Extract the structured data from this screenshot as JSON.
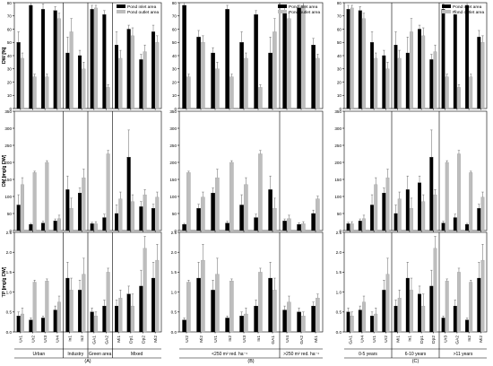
{
  "chart_data": {
    "type": "bar",
    "legend": {
      "position": "top-right",
      "inlet_label": "Pond inlet area",
      "outlet_label": "Pond outlet area",
      "inlet_color": "#000000",
      "outlet_color": "#bdbdbd"
    },
    "panels": [
      {
        "panel_label": "(A)",
        "categories": [
          "Ur1",
          "Ur2",
          "Ur3",
          "Ur4",
          "In1",
          "In2",
          "GA1",
          "GA2",
          "Mi1",
          "Dp1",
          "Dp2",
          "Mi2"
        ],
        "group_labels": [
          {
            "label": "Urban",
            "start": 0,
            "end": 3
          },
          {
            "label": "Industry",
            "start": 4,
            "end": 5
          },
          {
            "label": "Green area",
            "start": 6,
            "end": 7
          },
          {
            "label": "Mixed",
            "start": 8,
            "end": 11
          }
        ],
        "separators_after": [
          3,
          5,
          7
        ],
        "rows": {
          "dw": {
            "inlet": [
              50,
              78,
              75,
              74,
              42,
              40,
              75,
              71,
              48,
              60,
              37,
              58
            ],
            "inlet_err": [
              8,
              2,
              4,
              3,
              12,
              4,
              3,
              3,
              10,
              3,
              4,
              5
            ],
            "outlet": [
              38,
              24,
              24,
              68,
              58,
              30,
              76,
              16,
              38,
              55,
              43,
              50
            ],
            "outlet_err": [
              4,
              2,
              2,
              4,
              10,
              5,
              2,
              2,
              6,
              6,
              5,
              5
            ]
          },
          "om": {
            "inlet": [
              75,
              18,
              22,
              28,
              120,
              110,
              20,
              38,
              50,
              215,
              70,
              65
            ],
            "inlet_err": [
              30,
              3,
              5,
              6,
              40,
              15,
              4,
              10,
              25,
              80,
              15,
              12
            ],
            "outlet": [
              135,
              170,
              200,
              35,
              65,
              155,
              20,
              225,
              93,
              85,
              105,
              98
            ],
            "outlet_err": [
              20,
              4,
              5,
              10,
              30,
              25,
              6,
              10,
              20,
              20,
              15,
              15
            ]
          },
          "tp": {
            "inlet": [
              0.4,
              0.3,
              0.35,
              0.55,
              1.35,
              1.05,
              0.5,
              0.65,
              0.65,
              0.95,
              1.15,
              1.35
            ],
            "inlet_err": [
              0.1,
              0.05,
              0.05,
              0.1,
              0.4,
              0.25,
              0.1,
              0.15,
              0.15,
              0.2,
              0.4,
              0.4
            ],
            "outlet": [
              0.45,
              1.25,
              1.28,
              0.75,
              1.05,
              1.45,
              0.4,
              1.5,
              0.85,
              0.65,
              2.1,
              1.8
            ],
            "outlet_err": [
              0.15,
              0.05,
              0.05,
              0.15,
              0.3,
              0.4,
              0.1,
              0.1,
              0.2,
              0.3,
              0.3,
              0.4
            ]
          }
        }
      },
      {
        "panel_label": "(B)",
        "categories": [
          "Ur2",
          "Mi2",
          "Ur1",
          "In2",
          "Ur3",
          "In1",
          "GA1",
          "Ur4",
          "GA2",
          "Mi1"
        ],
        "group_labels": [
          {
            "label": "<250 m² red. ha⁻¹",
            "start": 0,
            "end": 6
          },
          {
            "label": ">250 m² red. ha⁻¹",
            "start": 7,
            "end": 9
          }
        ],
        "separators_after": [
          6
        ],
        "rows": {
          "dw": {
            "inlet": [
              78,
              54,
              42,
              75,
              50,
              71,
              42,
              74,
              76,
              48
            ],
            "inlet_err": [
              2,
              5,
              4,
              3,
              8,
              3,
              12,
              3,
              2,
              5
            ],
            "outlet": [
              24,
              50,
              30,
              24,
              38,
              16,
              58,
              68,
              78,
              38
            ],
            "outlet_err": [
              2,
              5,
              5,
              2,
              4,
              2,
              10,
              4,
              2,
              3
            ]
          },
          "om": {
            "inlet": [
              18,
              65,
              110,
              22,
              75,
              38,
              120,
              28,
              18,
              50
            ],
            "inlet_err": [
              3,
              12,
              15,
              5,
              30,
              10,
              40,
              6,
              5,
              10
            ],
            "outlet": [
              170,
              98,
              155,
              200,
              135,
              225,
              65,
              35,
              20,
              93
            ],
            "outlet_err": [
              4,
              15,
              25,
              5,
              20,
              10,
              30,
              10,
              6,
              8
            ]
          },
          "tp": {
            "inlet": [
              0.3,
              1.35,
              1.05,
              0.35,
              0.4,
              0.65,
              1.35,
              0.55,
              0.5,
              0.65
            ],
            "inlet_err": [
              0.05,
              0.4,
              0.25,
              0.05,
              0.1,
              0.15,
              0.4,
              0.1,
              0.1,
              0.1
            ],
            "outlet": [
              1.25,
              1.8,
              1.45,
              1.28,
              0.45,
              1.5,
              1.05,
              0.75,
              0.4,
              0.85
            ],
            "outlet_err": [
              0.05,
              0.4,
              0.4,
              0.05,
              0.15,
              0.1,
              0.3,
              0.15,
              0.1,
              0.1
            ]
          }
        }
      },
      {
        "panel_label": "(C)",
        "categories": [
          "GA1",
          "Ur4",
          "Ur1",
          "Ur2",
          "Mi1",
          "In1",
          "Dp1",
          "Dp2",
          "Ur3",
          "GA2",
          "In2",
          "Mi2"
        ],
        "group_labels": [
          {
            "label": "0-5 years",
            "start": 0,
            "end": 3
          },
          {
            "label": "6-10 years",
            "start": 4,
            "end": 7
          },
          {
            "label": ">11 years",
            "start": 8,
            "end": 11
          }
        ],
        "separators_after": [
          3,
          7
        ],
        "rows": {
          "dw": {
            "inlet": [
              75,
              74,
              50,
              40,
              48,
              42,
              60,
              37,
              75,
              71,
              78,
              54
            ],
            "inlet_err": [
              3,
              3,
              8,
              4,
              10,
              12,
              3,
              4,
              4,
              3,
              2,
              5
            ],
            "outlet": [
              76,
              68,
              38,
              30,
              38,
              58,
              55,
              43,
              24,
              16,
              24,
              50
            ],
            "outlet_err": [
              2,
              4,
              4,
              5,
              6,
              10,
              6,
              5,
              2,
              2,
              2,
              5
            ]
          },
          "om": {
            "inlet": [
              20,
              28,
              75,
              110,
              50,
              120,
              140,
              215,
              22,
              38,
              18,
              65
            ],
            "inlet_err": [
              4,
              6,
              30,
              15,
              25,
              40,
              20,
              80,
              5,
              10,
              3,
              12
            ],
            "outlet": [
              20,
              35,
              135,
              155,
              93,
              65,
              85,
              105,
              200,
              225,
              170,
              98
            ],
            "outlet_err": [
              6,
              10,
              20,
              25,
              20,
              30,
              20,
              15,
              5,
              10,
              4,
              15
            ]
          },
          "tp": {
            "inlet": [
              0.5,
              0.55,
              0.4,
              1.05,
              0.65,
              1.35,
              0.95,
              1.15,
              0.35,
              0.65,
              0.3,
              1.35
            ],
            "inlet_err": [
              0.1,
              0.1,
              0.1,
              0.25,
              0.15,
              0.4,
              0.2,
              0.4,
              0.05,
              0.15,
              0.05,
              0.4
            ],
            "outlet": [
              0.4,
              0.75,
              0.45,
              1.45,
              0.85,
              1.05,
              0.65,
              2.1,
              1.28,
              1.5,
              1.25,
              1.8
            ],
            "outlet_err": [
              0.1,
              0.15,
              0.15,
              0.4,
              0.2,
              0.3,
              0.3,
              0.3,
              0.05,
              0.1,
              0.05,
              0.4
            ]
          }
        }
      }
    ],
    "row_axes": [
      {
        "key": "dw",
        "ylabel": "DW [%]",
        "ylim": [
          0,
          80
        ],
        "ticks": [
          0,
          10,
          20,
          30,
          40,
          50,
          60,
          70,
          80
        ]
      },
      {
        "key": "om",
        "ylabel": "OM [mg/g DW]",
        "ylim": [
          0,
          350
        ],
        "ticks": [
          0,
          50,
          100,
          150,
          200,
          250,
          300,
          350
        ]
      },
      {
        "key": "tp",
        "ylabel": "TP [mg/g DW]",
        "ylim": [
          0,
          2.5
        ],
        "ticks": [
          0.0,
          0.5,
          1.0,
          1.5,
          2.0,
          2.5
        ],
        "tick_decimals": 1
      }
    ]
  }
}
